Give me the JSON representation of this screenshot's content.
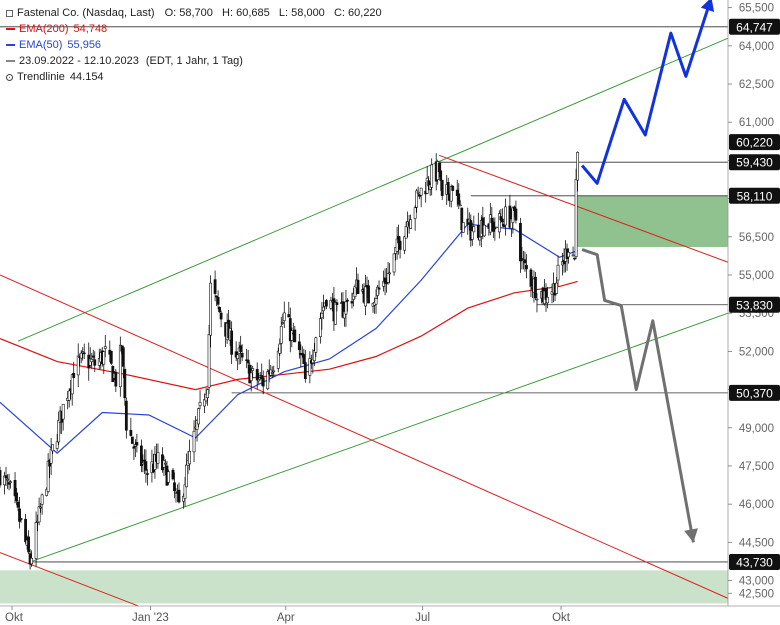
{
  "legend": {
    "title": "Fastenal Co. (Nasdaq, Last)",
    "ohlc": "O: 58,700   H: 60,685   L: 58,000   C: 60,220",
    "ema200_label": "EMA(200)",
    "ema200_value": "54,748",
    "ema50_label": "EMA(50)",
    "ema50_value": "55,956",
    "range": "23.09.2022 - 12.10.2023",
    "range_note": "(EDT, 1 Jahr, 1 Tag)",
    "trend_label": "Trendlinie",
    "trend_value": "44.154"
  },
  "colors": {
    "ema200": "#dd1111",
    "ema50": "#2a44d8",
    "channel_green": "#3a9a3a",
    "channel_red": "#dd2222",
    "zone_green": "#8fc28f",
    "zone_green_light": "#c9e2c9",
    "forecast_up": "#1133dd",
    "forecast_down": "#707070",
    "price_label_bg": "#111111"
  },
  "chart_data": {
    "type": "candlestick",
    "title": "Fastenal Co. (Nasdaq, Last)",
    "y_axis_side": "right",
    "ylim": [
      42000,
      65800
    ],
    "y_ticks": [
      "65,500",
      "64,000",
      "62,500",
      "61,000",
      "59,500",
      "58,000",
      "56,500",
      "55,000",
      "53,500",
      "52,000",
      "50,500",
      "49,000",
      "47,500",
      "46,000",
      "44,500",
      "43,000",
      "42,500"
    ],
    "y_tick_values": [
      65500,
      64000,
      62500,
      61000,
      59500,
      58000,
      56500,
      55000,
      53500,
      52000,
      50500,
      49000,
      47500,
      46000,
      44500,
      43000,
      42500
    ],
    "x_ticks": [
      "Okt",
      "Jan '23",
      "Apr",
      "Jul",
      "Okt"
    ],
    "x_tick_dates": [
      "2022-10-01",
      "2023-01-01",
      "2023-04-01",
      "2023-07-01",
      "2023-10-01"
    ],
    "x_range": [
      "2022-09-23",
      "2024-01-20"
    ],
    "price_levels": [
      {
        "label": "64,747",
        "value": 64747,
        "style": "dark"
      },
      {
        "label": "60,220",
        "value": 60220,
        "style": "dark"
      },
      {
        "label": "59,430",
        "value": 59430,
        "style": "dark"
      },
      {
        "label": "58,110",
        "value": 58110,
        "style": "dark"
      },
      {
        "label": "53,830",
        "value": 53830,
        "style": "dark"
      },
      {
        "label": "50,370",
        "value": 50370,
        "style": "dark"
      },
      {
        "label": "43,730",
        "value": 43730,
        "style": "dark"
      }
    ],
    "support_zones": [
      {
        "from": 56100,
        "to": 58100,
        "start_date": "2023-10-12"
      },
      {
        "from": 42100,
        "to": 43400,
        "start_date": "2022-09-23"
      }
    ],
    "price_path": [
      [
        "2022-09-23",
        47200
      ],
      [
        "2022-09-30",
        46500
      ],
      [
        "2022-10-07",
        45200
      ],
      [
        "2022-10-13",
        43730
      ],
      [
        "2022-10-21",
        46100
      ],
      [
        "2022-10-28",
        48100
      ],
      [
        "2022-11-04",
        49800
      ],
      [
        "2022-11-11",
        51300
      ],
      [
        "2022-11-18",
        51700
      ],
      [
        "2022-11-25",
        51500
      ],
      [
        "2022-12-02",
        51900
      ],
      [
        "2022-12-09",
        50900
      ],
      [
        "2022-12-13",
        52100
      ],
      [
        "2022-12-16",
        49200
      ],
      [
        "2022-12-23",
        47900
      ],
      [
        "2022-12-30",
        47300
      ],
      [
        "2023-01-06",
        47700
      ],
      [
        "2023-01-13",
        47100
      ],
      [
        "2023-01-20",
        45900
      ],
      [
        "2023-01-27",
        47800
      ],
      [
        "2023-02-03",
        49600
      ],
      [
        "2023-02-08",
        50900
      ],
      [
        "2023-02-10",
        54500
      ],
      [
        "2023-02-17",
        53400
      ],
      [
        "2023-02-24",
        52300
      ],
      [
        "2023-03-03",
        51600
      ],
      [
        "2023-03-10",
        51000
      ],
      [
        "2023-03-17",
        50800
      ],
      [
        "2023-03-24",
        51600
      ],
      [
        "2023-03-31",
        53400
      ],
      [
        "2023-04-07",
        52300
      ],
      [
        "2023-04-13",
        51400
      ],
      [
        "2023-04-14",
        50600
      ],
      [
        "2023-04-21",
        52700
      ],
      [
        "2023-04-28",
        54200
      ],
      [
        "2023-05-05",
        53400
      ],
      [
        "2023-05-12",
        53900
      ],
      [
        "2023-05-19",
        54600
      ],
      [
        "2023-05-26",
        54100
      ],
      [
        "2023-06-02",
        54400
      ],
      [
        "2023-06-09",
        55100
      ],
      [
        "2023-06-16",
        56400
      ],
      [
        "2023-06-23",
        57500
      ],
      [
        "2023-06-30",
        58300
      ],
      [
        "2023-07-07",
        58900
      ],
      [
        "2023-07-12",
        59100
      ],
      [
        "2023-07-14",
        57800
      ],
      [
        "2023-07-21",
        58600
      ],
      [
        "2023-07-28",
        56900
      ],
      [
        "2023-08-04",
        56700
      ],
      [
        "2023-08-11",
        57100
      ],
      [
        "2023-08-18",
        56900
      ],
      [
        "2023-08-25",
        57300
      ],
      [
        "2023-09-01",
        57200
      ],
      [
        "2023-09-05",
        55500
      ],
      [
        "2023-09-12",
        54700
      ],
      [
        "2023-09-19",
        54200
      ],
      [
        "2023-09-26",
        54500
      ],
      [
        "2023-10-03",
        55600
      ],
      [
        "2023-10-06",
        56200
      ],
      [
        "2023-10-10",
        55700
      ],
      [
        "2023-10-11",
        58700
      ],
      [
        "2023-10-12",
        60220
      ]
    ],
    "series": [
      {
        "name": "EMA(200)",
        "values": [
          [
            "2022-09-23",
            52500
          ],
          [
            "2022-10-31",
            51600
          ],
          [
            "2022-12-15",
            51100
          ],
          [
            "2023-01-31",
            50500
          ],
          [
            "2023-02-28",
            50900
          ],
          [
            "2023-03-31",
            51100
          ],
          [
            "2023-04-30",
            51300
          ],
          [
            "2023-05-31",
            51800
          ],
          [
            "2023-06-30",
            52600
          ],
          [
            "2023-07-31",
            53700
          ],
          [
            "2023-08-31",
            54300
          ],
          [
            "2023-09-30",
            54550
          ],
          [
            "2023-10-12",
            54748
          ]
        ]
      },
      {
        "name": "EMA(50)",
        "values": [
          [
            "2022-09-23",
            50000
          ],
          [
            "2022-10-31",
            48000
          ],
          [
            "2022-11-30",
            49600
          ],
          [
            "2022-12-31",
            49500
          ],
          [
            "2023-01-31",
            48600
          ],
          [
            "2023-02-28",
            50300
          ],
          [
            "2023-03-31",
            51200
          ],
          [
            "2023-04-30",
            51700
          ],
          [
            "2023-05-31",
            52900
          ],
          [
            "2023-06-30",
            54800
          ],
          [
            "2023-07-31",
            57000
          ],
          [
            "2023-08-31",
            56800
          ],
          [
            "2023-09-30",
            55700
          ],
          [
            "2023-10-12",
            55956
          ]
        ]
      }
    ],
    "trend_lines": [
      {
        "color": "channel_green",
        "points": [
          [
            "2022-10-05",
            52400
          ],
          [
            "2024-01-20",
            64300
          ]
        ]
      },
      {
        "color": "channel_green",
        "points": [
          [
            "2022-10-13",
            43730
          ],
          [
            "2024-01-20",
            53500
          ]
        ]
      },
      {
        "color": "channel_red",
        "points": [
          [
            "2022-09-23",
            55000
          ],
          [
            "2024-01-20",
            42300
          ]
        ]
      },
      {
        "color": "channel_red",
        "points": [
          [
            "2022-09-23",
            44100
          ],
          [
            "2022-12-24",
            42000
          ]
        ]
      },
      {
        "color": "channel_red",
        "points": [
          [
            "2023-07-12",
            59700
          ],
          [
            "2024-01-20",
            55500
          ]
        ]
      }
    ],
    "forecast_up": [
      [
        "2023-10-15",
        59300
      ],
      [
        "2023-10-25",
        58600
      ],
      [
        "2023-11-12",
        61900
      ],
      [
        "2023-11-26",
        60500
      ],
      [
        "2023-12-13",
        64500
      ],
      [
        "2023-12-23",
        62800
      ],
      [
        "2024-01-09",
        65900
      ]
    ],
    "forecast_down": [
      [
        "2023-10-15",
        56000
      ],
      [
        "2023-10-25",
        55800
      ],
      [
        "2023-10-30",
        54000
      ],
      [
        "2023-11-10",
        53800
      ],
      [
        "2023-11-20",
        50500
      ],
      [
        "2023-12-01",
        53200
      ],
      [
        "2023-12-28",
        44500
      ]
    ]
  }
}
